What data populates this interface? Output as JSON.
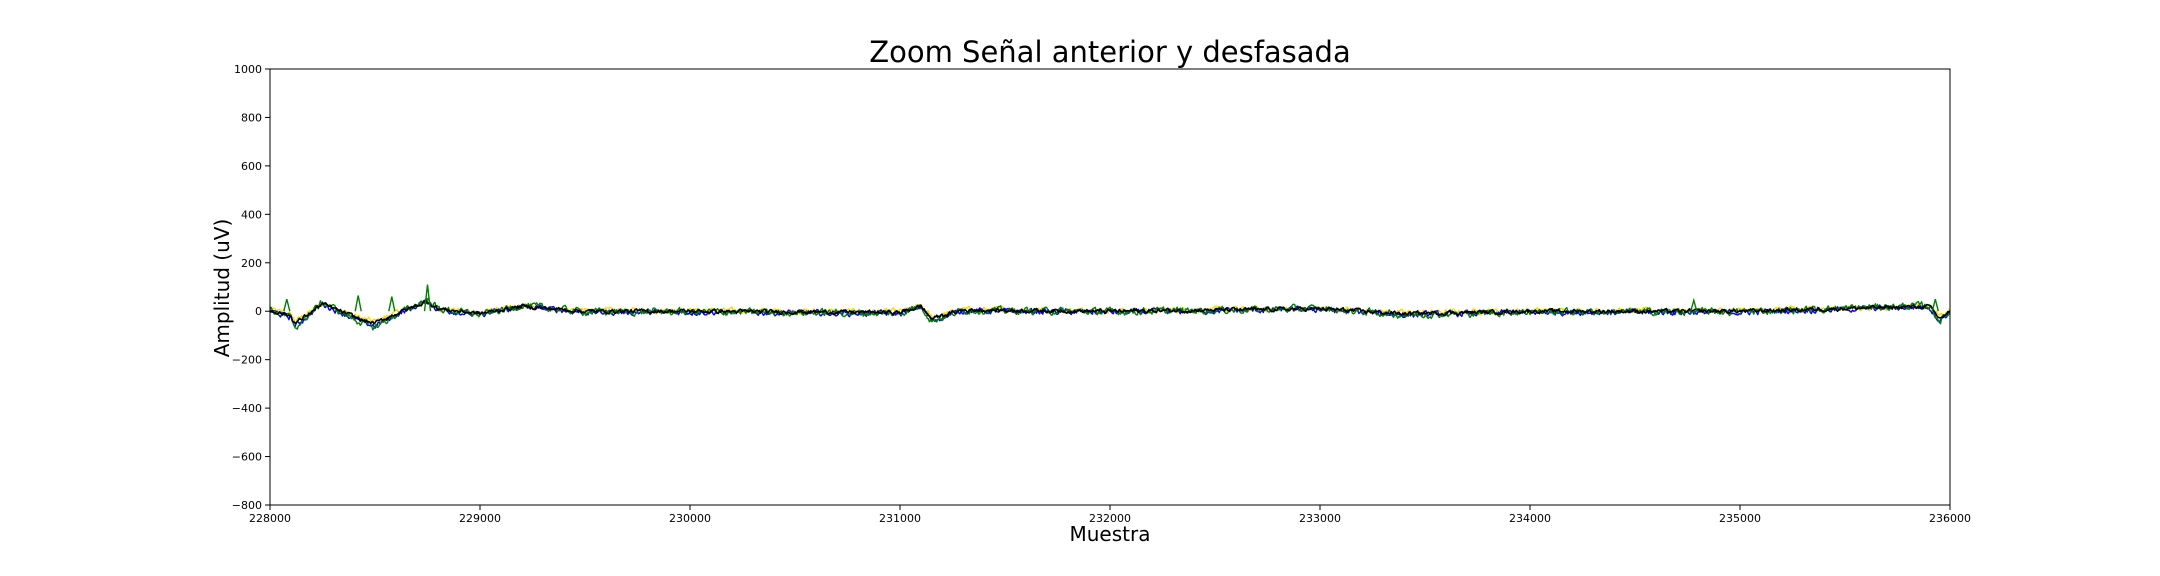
{
  "chart_data": {
    "type": "line",
    "title": "Zoom Señal anterior y desfasada",
    "xlabel": "Muestra",
    "ylabel": "Amplitud (uV)",
    "xlim": [
      228000,
      236000
    ],
    "ylim": [
      -800,
      1000
    ],
    "x_ticks": [
      "228000",
      "229000",
      "230000",
      "231000",
      "232000",
      "233000",
      "234000",
      "235000",
      "236000"
    ],
    "y_ticks": [
      "1000",
      "800",
      "600",
      "400",
      "200",
      "0",
      "−200",
      "−400",
      "−600",
      "−800"
    ],
    "grid": false,
    "legend": false,
    "series_colors": [
      "#ffd700",
      "#0000ff",
      "#008000",
      "#000000"
    ],
    "key_points": [
      {
        "x": 228000,
        "y": 5
      },
      {
        "x": 228100,
        "y": -20
      },
      {
        "x": 228120,
        "y": -50
      },
      {
        "x": 228250,
        "y": 30
      },
      {
        "x": 228450,
        "y": -40
      },
      {
        "x": 228500,
        "y": -50
      },
      {
        "x": 228600,
        "y": -10
      },
      {
        "x": 228750,
        "y": 40
      },
      {
        "x": 228800,
        "y": 10
      },
      {
        "x": 229000,
        "y": -10
      },
      {
        "x": 229200,
        "y": 20
      },
      {
        "x": 229500,
        "y": 0
      },
      {
        "x": 230000,
        "y": 0
      },
      {
        "x": 231000,
        "y": -5
      },
      {
        "x": 231100,
        "y": 20
      },
      {
        "x": 231150,
        "y": -30
      },
      {
        "x": 231300,
        "y": 5
      },
      {
        "x": 232000,
        "y": 0
      },
      {
        "x": 233000,
        "y": 10
      },
      {
        "x": 233400,
        "y": -10
      },
      {
        "x": 234000,
        "y": 0
      },
      {
        "x": 235000,
        "y": 0
      },
      {
        "x": 235900,
        "y": 20
      },
      {
        "x": 235950,
        "y": -30
      },
      {
        "x": 236000,
        "y": 0
      }
    ]
  }
}
